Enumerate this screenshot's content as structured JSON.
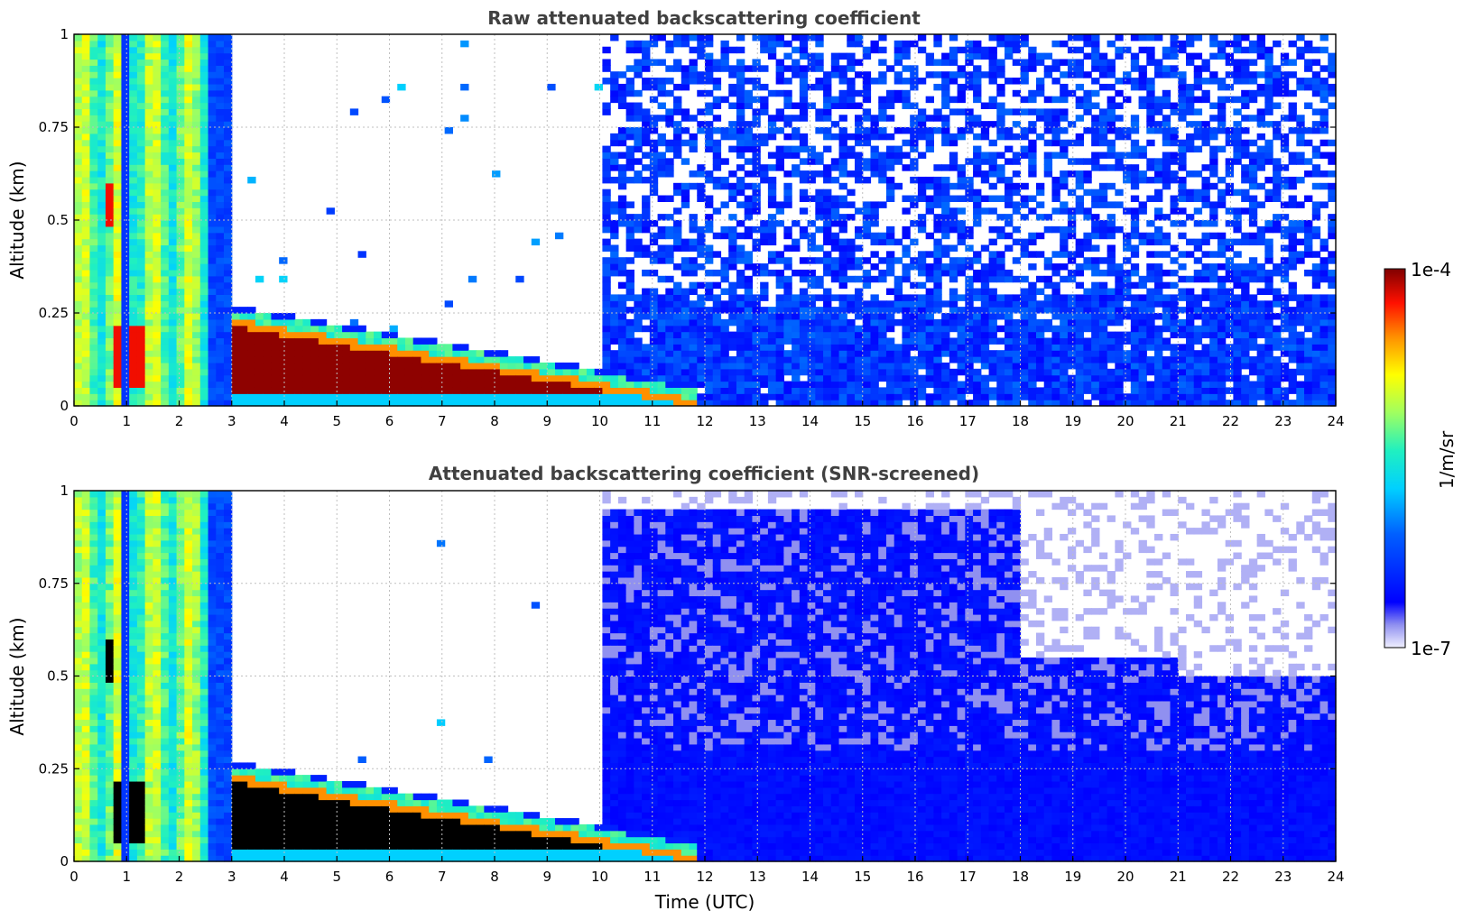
{
  "chart_data": [
    {
      "type": "heatmap",
      "id": "raw",
      "title": "Raw attenuated backscattering coefficient",
      "xlabel": "",
      "ylabel": "Altitude (km)",
      "xlim": [
        0,
        24
      ],
      "ylim": [
        0,
        1
      ],
      "xticks": [
        "0",
        "1",
        "2",
        "3",
        "4",
        "5",
        "6",
        "7",
        "8",
        "9",
        "10",
        "11",
        "12",
        "13",
        "14",
        "15",
        "16",
        "17",
        "18",
        "19",
        "20",
        "21",
        "22",
        "23",
        "24"
      ],
      "yticks": [
        "0",
        "0.25",
        "0.5",
        "0.75",
        "1"
      ],
      "grid": true,
      "features": [
        {
          "name": "near-surface aerosol",
          "time_utc": [
            0,
            3
          ],
          "altitude_km": [
            0,
            1
          ],
          "log10_value": -5.6
        },
        {
          "name": "cloud base return",
          "time_utc": [
            3,
            12
          ],
          "altitude_km_start": 0.26,
          "altitude_km_end": 0.04,
          "log10_value": -4.0
        },
        {
          "name": "noise-dominated background",
          "time_utc": [
            10,
            24
          ],
          "altitude_km": [
            0,
            1
          ],
          "log10_value": -6.3
        }
      ]
    },
    {
      "type": "heatmap",
      "id": "screened",
      "title": "Attenuated backscattering coefficient (SNR-screened)",
      "xlabel": "Time (UTC)",
      "ylabel": "Altitude (km)",
      "xlim": [
        0,
        24
      ],
      "ylim": [
        0,
        1
      ],
      "xticks": [
        "0",
        "1",
        "2",
        "3",
        "4",
        "5",
        "6",
        "7",
        "8",
        "9",
        "10",
        "11",
        "12",
        "13",
        "14",
        "15",
        "16",
        "17",
        "18",
        "19",
        "20",
        "21",
        "22",
        "23",
        "24"
      ],
      "yticks": [
        "0",
        "0.25",
        "0.5",
        "0.75",
        "1"
      ],
      "grid": true,
      "features": [
        {
          "name": "near-surface aerosol",
          "time_utc": [
            0,
            3
          ],
          "altitude_km": [
            0,
            1
          ],
          "log10_value": -5.6
        },
        {
          "name": "cloud base return (saturated)",
          "time_utc": [
            3,
            11.9
          ],
          "altitude_km_start": 0.26,
          "altitude_km_end": 0.04,
          "log10_value": -3.8
        },
        {
          "name": "boundary layer",
          "time_utc": [
            10,
            24
          ],
          "altitude_km": [
            0,
            0.5
          ],
          "log10_value": -6.3
        }
      ]
    }
  ],
  "colorbar": {
    "label": "1/m/sr",
    "max_label": "1e-4",
    "min_label": "1e-7",
    "scale": "log",
    "range": [
      1e-07,
      0.0001
    ],
    "colormap": "jet",
    "colors": {
      "low": "#f0f0ff",
      "high": "#800000"
    }
  }
}
